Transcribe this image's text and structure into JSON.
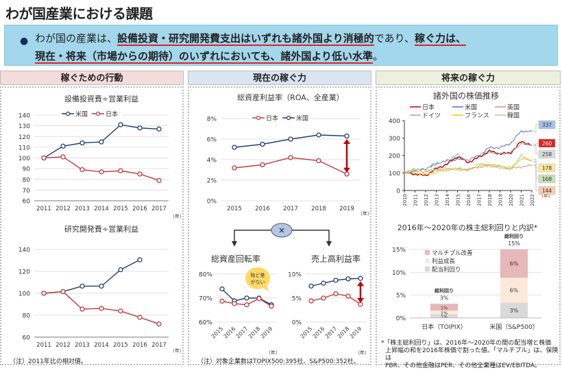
{
  "title": "わが国産業における課題",
  "summary": {
    "p1": "わが国の産業は、",
    "u1": "設備投資・研究開発費支出はいずれも諸外国より消極的",
    "p2": "であり、",
    "u2": "稼ぐ力は、",
    "u3": "現在・将来（市場からの期待）のいずれにおいても、諸外国より低い水準",
    "p3": "。"
  },
  "columns": [
    {
      "header": "稼ぐための行動",
      "color": "#f4dcdc"
    },
    {
      "header": "現在の稼ぐ力",
      "color": "#dbe5f1"
    },
    {
      "header": "将来の稼ぐ力",
      "color": "#ebf1de"
    }
  ],
  "notes": {
    "col1": "（注）2011年比の相対値。",
    "col2": "（注）対象企業数はTOPIX500:395社、S&P500:352社。",
    "col3_1": "*「株主総利回り」は、2016年～2020年の間の配当増と株価",
    "col3_2": "上昇幅の和を2016年株価で割った値。「マルチプル」は、保険は",
    "col3_3": "PBR、その他金融はPER、その他全業種はEV/EBITDA。"
  },
  "multiply_symbol": "×",
  "callout": "殆ど差がない",
  "year_unit": "（年）",
  "colors": {
    "us": "#1f3c73",
    "jp": "#c0393b",
    "arrow": "#c00000"
  },
  "chart_data": [
    {
      "id": "capex",
      "type": "line",
      "title": "設備投資費÷営業利益",
      "categories": [
        "2011",
        "2012",
        "2013",
        "2014",
        "2015",
        "2016",
        "2017"
      ],
      "ylim": [
        60,
        140
      ],
      "yticks": [
        60,
        70,
        80,
        90,
        100,
        110,
        120,
        130,
        140
      ],
      "series": [
        {
          "name": "米国",
          "values": [
            100,
            111,
            114,
            115,
            131,
            128,
            127
          ]
        },
        {
          "name": "日本",
          "values": [
            100,
            101,
            89,
            87,
            88,
            85,
            79
          ]
        }
      ]
    },
    {
      "id": "rnd",
      "type": "line",
      "title": "研究開発費÷営業利益",
      "categories": [
        "2011",
        "2012",
        "2013",
        "2014",
        "2015",
        "2016",
        "2017"
      ],
      "ylim": [
        60,
        140
      ],
      "yticks": [
        60,
        80,
        100,
        120,
        140
      ],
      "series": [
        {
          "name": "米国",
          "values": [
            100,
            101.5,
            106.5,
            106.5,
            121.5,
            130.5,
            null
          ]
        },
        {
          "name": "日本",
          "values": [
            100,
            101.5,
            85.5,
            86.2,
            83.8,
            78,
            72
          ]
        }
      ]
    },
    {
      "id": "roa",
      "type": "line",
      "title": "総資産利益率（ROA、全産業）",
      "categories": [
        "2015",
        "2016",
        "2017",
        "2018",
        "2019"
      ],
      "ylim": [
        0,
        8
      ],
      "yticks": [
        "0%",
        "2%",
        "4%",
        "6%",
        "8%"
      ],
      "series": [
        {
          "name": "日本",
          "values": [
            3.2,
            3.5,
            4.2,
            3.9,
            2.6
          ]
        },
        {
          "name": "米国",
          "values": [
            5.2,
            5.5,
            6.0,
            6.4,
            6.3
          ]
        }
      ]
    },
    {
      "id": "turnover",
      "type": "line",
      "title": "総資産回転率",
      "categories": [
        "2015",
        "2016",
        "2017",
        "2018",
        "2019"
      ],
      "ylim": [
        60,
        80
      ],
      "yticks": [
        "60%",
        "70%",
        "80%"
      ],
      "series": [
        {
          "name": "米国",
          "values": [
            73.8,
            68.8,
            70,
            70,
            67.2
          ]
        },
        {
          "name": "日本",
          "values": [
            68.7,
            67.7,
            67.2,
            69.8,
            66.6
          ]
        }
      ]
    },
    {
      "id": "margin",
      "type": "line",
      "title": "売上高利益率",
      "categories": [
        "2015",
        "2016",
        "2017",
        "2018",
        "2019"
      ],
      "ylim": [
        0,
        10
      ],
      "yticks": [
        "0%",
        "5%",
        "10%"
      ],
      "series": [
        {
          "name": "米国",
          "values": [
            7.5,
            8.1,
            8.7,
            9.0,
            9.1
          ]
        },
        {
          "name": "日本",
          "values": [
            4.4,
            5.0,
            5.9,
            5.4,
            3.7
          ]
        }
      ]
    },
    {
      "id": "stock",
      "type": "line",
      "title": "諸外国の株価推移",
      "x": [
        "2010",
        "2011",
        "2012",
        "2013",
        "2014",
        "2015",
        "2016",
        "2017",
        "2018",
        "2019",
        "2020",
        "2021",
        "2022"
      ],
      "ylim": [
        0,
        400
      ],
      "yticks": [
        0,
        100,
        200,
        300,
        400
      ],
      "series": [
        {
          "name": "日本",
          "color": "#c00000",
          "values": [
            100,
            95,
            85,
            125,
            150,
            195,
            160,
            190,
            225,
            210,
            215,
            280,
            260
          ],
          "end_label": "260",
          "label_bg": "#d9261c"
        },
        {
          "name": "米国",
          "color": "#4472c4",
          "values": [
            100,
            115,
            125,
            155,
            170,
            180,
            175,
            200,
            245,
            245,
            270,
            340,
            337
          ],
          "end_label": "337",
          "label_bg": "#a8c0e8"
        },
        {
          "name": "英国",
          "color": "#e08f6a",
          "values": [
            100,
            110,
            108,
            120,
            125,
            125,
            118,
            135,
            140,
            135,
            125,
            135,
            144
          ],
          "end_label": "144",
          "label_bg": "#f8cbad"
        },
        {
          "name": "ドイツ",
          "color": "#a5a5a5",
          "values": [
            100,
            120,
            120,
            150,
            170,
            205,
            170,
            205,
            220,
            210,
            215,
            270,
            258
          ],
          "end_label": "258",
          "label_bg": "#d9d9d9"
        },
        {
          "name": "フランス",
          "color": "#ffc000",
          "values": [
            100,
            105,
            90,
            105,
            115,
            125,
            118,
            140,
            150,
            140,
            130,
            180,
            178
          ],
          "end_label": "178",
          "label_bg": "#ffe699"
        },
        {
          "name": "韓国",
          "color": "#a9d18e",
          "values": [
            100,
            125,
            115,
            115,
            120,
            118,
            118,
            150,
            150,
            130,
            120,
            200,
            168
          ],
          "end_label": "168",
          "label_bg": "#c5e0b4"
        }
      ]
    },
    {
      "id": "tsr",
      "type": "bar",
      "title": "2016年～2020年の株主総利回りと内訳*",
      "categories": [
        "日本（TOIPIX）",
        "米国（S&P500）"
      ],
      "ylim": [
        0,
        15
      ],
      "yticks": [
        "0%",
        "5%",
        "10%",
        "15%"
      ],
      "total_label": "総利回り",
      "totals": [
        "3%",
        "15%"
      ],
      "series": [
        {
          "name": "配当利回り",
          "color": "#d9d9d9",
          "values": [
            0.8,
            3.3
          ],
          "labels": [
            "1%",
            "3%"
          ]
        },
        {
          "name": "利益成長",
          "color": "#fde9d9",
          "values": [
            0.8,
            5.5
          ],
          "labels": [
            "1%",
            "6%"
          ]
        },
        {
          "name": "マルチプル改善",
          "color": "#e6b8b7",
          "values": [
            1.5,
            6.2
          ],
          "labels": [
            "1%",
            "6%"
          ]
        }
      ]
    }
  ]
}
